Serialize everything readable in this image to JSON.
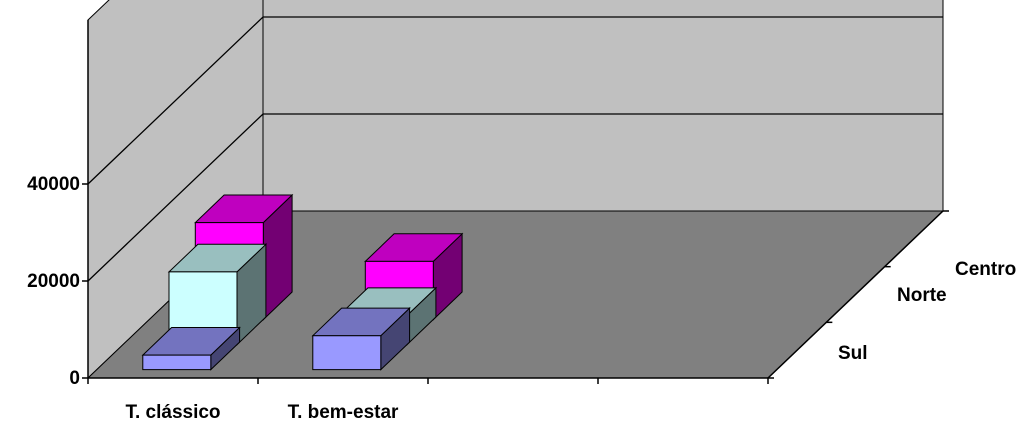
{
  "chart_data": {
    "type": "bar",
    "subtype": "3d-column",
    "categories": [
      "T. clássico",
      "T. bem-estar"
    ],
    "series": [
      {
        "name": "Sul",
        "values": [
          3000,
          7000
        ],
        "color": "#9999ff"
      },
      {
        "name": "Norte",
        "values": [
          15000,
          6000
        ],
        "color": "#ccffff"
      },
      {
        "name": "Centro",
        "values": [
          20000,
          12000
        ],
        "color": "#ff00ff"
      }
    ],
    "y_ticks": [
      "0",
      "20000",
      "40000"
    ],
    "ylim": [
      0,
      40000
    ],
    "grid": true,
    "legend": "none",
    "colors": {
      "back_wall": "#c0c0c0",
      "floor": "#808080"
    }
  }
}
